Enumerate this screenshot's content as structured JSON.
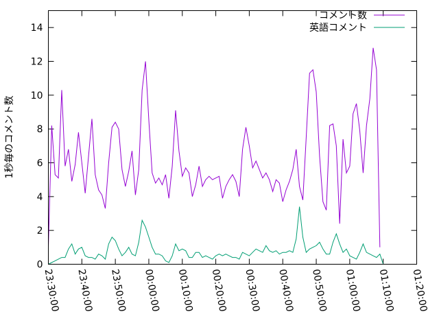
{
  "chart_data": {
    "type": "line",
    "ylabel": "1秒毎のコメント数",
    "xlabel": "",
    "ylim": [
      0,
      15
    ],
    "yticks": [
      0,
      2,
      4,
      6,
      8,
      10,
      12,
      14
    ],
    "xlim": [
      "23:30:00",
      "01:20:00"
    ],
    "xticks": [
      "23:30:00",
      "23:40:00",
      "23:50:00",
      "00:00:00",
      "00:10:00",
      "00:20:00",
      "00:30:00",
      "00:40:00",
      "00:50:00",
      "01:00:00",
      "01:10:00",
      "01:20:00"
    ],
    "grid": false,
    "legend_position": "top-right",
    "series": [
      {
        "name": "コメント数",
        "color": "#9400d3",
        "points": [
          [
            "23:30:00",
            1.0
          ],
          [
            "23:31:00",
            8.2
          ],
          [
            "23:32:00",
            5.3
          ],
          [
            "23:33:00",
            5.1
          ],
          [
            "23:34:00",
            10.3
          ],
          [
            "23:35:00",
            5.8
          ],
          [
            "23:36:00",
            6.8
          ],
          [
            "23:37:00",
            4.9
          ],
          [
            "23:38:00",
            5.9
          ],
          [
            "23:39:00",
            7.8
          ],
          [
            "23:40:00",
            6.0
          ],
          [
            "23:41:00",
            4.2
          ],
          [
            "23:42:00",
            6.4
          ],
          [
            "23:43:00",
            8.6
          ],
          [
            "23:44:00",
            5.3
          ],
          [
            "23:45:00",
            4.4
          ],
          [
            "23:46:00",
            4.1
          ],
          [
            "23:47:00",
            3.3
          ],
          [
            "23:48:00",
            6.0
          ],
          [
            "23:49:00",
            8.1
          ],
          [
            "23:50:00",
            8.4
          ],
          [
            "23:51:00",
            8.0
          ],
          [
            "23:52:00",
            5.6
          ],
          [
            "23:53:00",
            4.6
          ],
          [
            "23:54:00",
            5.5
          ],
          [
            "23:55:00",
            6.7
          ],
          [
            "23:56:00",
            4.1
          ],
          [
            "23:57:00",
            5.6
          ],
          [
            "23:58:00",
            10.3
          ],
          [
            "23:59:00",
            12.0
          ],
          [
            "00:00:00",
            8.5
          ],
          [
            "00:01:00",
            5.4
          ],
          [
            "00:02:00",
            4.8
          ],
          [
            "00:03:00",
            5.1
          ],
          [
            "00:04:00",
            4.7
          ],
          [
            "00:05:00",
            5.3
          ],
          [
            "00:06:00",
            3.9
          ],
          [
            "00:07:00",
            5.8
          ],
          [
            "00:08:00",
            9.1
          ],
          [
            "00:09:00",
            6.7
          ],
          [
            "00:10:00",
            5.2
          ],
          [
            "00:11:00",
            5.7
          ],
          [
            "00:12:00",
            5.4
          ],
          [
            "00:13:00",
            4.0
          ],
          [
            "00:14:00",
            4.7
          ],
          [
            "00:15:00",
            5.8
          ],
          [
            "00:16:00",
            4.6
          ],
          [
            "00:17:00",
            5.0
          ],
          [
            "00:18:00",
            5.2
          ],
          [
            "00:19:00",
            5.0
          ],
          [
            "00:20:00",
            5.1
          ],
          [
            "00:21:00",
            5.2
          ],
          [
            "00:22:00",
            3.9
          ],
          [
            "00:23:00",
            4.6
          ],
          [
            "00:24:00",
            5.0
          ],
          [
            "00:25:00",
            5.3
          ],
          [
            "00:26:00",
            4.9
          ],
          [
            "00:27:00",
            4.0
          ],
          [
            "00:28:00",
            6.8
          ],
          [
            "00:29:00",
            8.1
          ],
          [
            "00:30:00",
            7.0
          ],
          [
            "00:31:00",
            5.7
          ],
          [
            "00:32:00",
            6.1
          ],
          [
            "00:33:00",
            5.6
          ],
          [
            "00:34:00",
            5.1
          ],
          [
            "00:35:00",
            5.4
          ],
          [
            "00:36:00",
            5.0
          ],
          [
            "00:37:00",
            4.3
          ],
          [
            "00:38:00",
            5.0
          ],
          [
            "00:39:00",
            4.8
          ],
          [
            "00:40:00",
            3.7
          ],
          [
            "00:41:00",
            4.4
          ],
          [
            "00:42:00",
            4.9
          ],
          [
            "00:43:00",
            5.6
          ],
          [
            "00:44:00",
            6.8
          ],
          [
            "00:45:00",
            4.6
          ],
          [
            "00:46:00",
            3.8
          ],
          [
            "00:47:00",
            7.5
          ],
          [
            "00:48:00",
            11.3
          ],
          [
            "00:49:00",
            11.5
          ],
          [
            "00:50:00",
            10.2
          ],
          [
            "00:51:00",
            6.4
          ],
          [
            "00:52:00",
            3.7
          ],
          [
            "00:53:00",
            3.2
          ],
          [
            "00:54:00",
            8.2
          ],
          [
            "00:55:00",
            8.3
          ],
          [
            "00:56:00",
            7.0
          ],
          [
            "00:57:00",
            2.4
          ],
          [
            "00:58:00",
            7.4
          ],
          [
            "00:59:00",
            5.4
          ],
          [
            "01:00:00",
            5.8
          ],
          [
            "01:01:00",
            8.9
          ],
          [
            "01:02:00",
            9.5
          ],
          [
            "01:03:00",
            7.9
          ],
          [
            "01:04:00",
            5.4
          ],
          [
            "01:05:00",
            8.2
          ],
          [
            "01:06:00",
            9.8
          ],
          [
            "01:07:00",
            12.8
          ],
          [
            "01:08:00",
            11.5
          ],
          [
            "01:09:00",
            1.0
          ]
        ]
      },
      {
        "name": "英語コメント",
        "color": "#009e73",
        "points": [
          [
            "23:30:00",
            0.0
          ],
          [
            "23:31:00",
            0.1
          ],
          [
            "23:32:00",
            0.2
          ],
          [
            "23:33:00",
            0.3
          ],
          [
            "23:34:00",
            0.4
          ],
          [
            "23:35:00",
            0.4
          ],
          [
            "23:36:00",
            0.9
          ],
          [
            "23:37:00",
            1.2
          ],
          [
            "23:38:00",
            0.6
          ],
          [
            "23:39:00",
            0.9
          ],
          [
            "23:40:00",
            1.0
          ],
          [
            "23:41:00",
            0.5
          ],
          [
            "23:42:00",
            0.4
          ],
          [
            "23:43:00",
            0.4
          ],
          [
            "23:44:00",
            0.3
          ],
          [
            "23:45:00",
            0.6
          ],
          [
            "23:46:00",
            0.5
          ],
          [
            "23:47:00",
            0.3
          ],
          [
            "23:48:00",
            1.2
          ],
          [
            "23:49:00",
            1.6
          ],
          [
            "23:50:00",
            1.4
          ],
          [
            "23:51:00",
            0.9
          ],
          [
            "23:52:00",
            0.5
          ],
          [
            "23:53:00",
            0.7
          ],
          [
            "23:54:00",
            1.0
          ],
          [
            "23:55:00",
            0.6
          ],
          [
            "23:56:00",
            0.5
          ],
          [
            "23:57:00",
            1.3
          ],
          [
            "23:58:00",
            2.6
          ],
          [
            "23:59:00",
            2.2
          ],
          [
            "00:00:00",
            1.6
          ],
          [
            "00:01:00",
            1.0
          ],
          [
            "00:02:00",
            0.6
          ],
          [
            "00:03:00",
            0.6
          ],
          [
            "00:04:00",
            0.5
          ],
          [
            "00:05:00",
            0.2
          ],
          [
            "00:06:00",
            0.1
          ],
          [
            "00:07:00",
            0.5
          ],
          [
            "00:08:00",
            1.2
          ],
          [
            "00:09:00",
            0.8
          ],
          [
            "00:10:00",
            0.9
          ],
          [
            "00:11:00",
            0.8
          ],
          [
            "00:12:00",
            0.4
          ],
          [
            "00:13:00",
            0.4
          ],
          [
            "00:14:00",
            0.7
          ],
          [
            "00:15:00",
            0.7
          ],
          [
            "00:16:00",
            0.4
          ],
          [
            "00:17:00",
            0.5
          ],
          [
            "00:18:00",
            0.4
          ],
          [
            "00:19:00",
            0.3
          ],
          [
            "00:20:00",
            0.5
          ],
          [
            "00:21:00",
            0.6
          ],
          [
            "00:22:00",
            0.5
          ],
          [
            "00:23:00",
            0.6
          ],
          [
            "00:24:00",
            0.5
          ],
          [
            "00:25:00",
            0.4
          ],
          [
            "00:26:00",
            0.4
          ],
          [
            "00:27:00",
            0.3
          ],
          [
            "00:28:00",
            0.7
          ],
          [
            "00:29:00",
            0.6
          ],
          [
            "00:30:00",
            0.5
          ],
          [
            "00:31:00",
            0.7
          ],
          [
            "00:32:00",
            0.9
          ],
          [
            "00:33:00",
            0.8
          ],
          [
            "00:34:00",
            0.7
          ],
          [
            "00:35:00",
            1.1
          ],
          [
            "00:36:00",
            0.8
          ],
          [
            "00:37:00",
            0.7
          ],
          [
            "00:38:00",
            0.8
          ],
          [
            "00:39:00",
            0.6
          ],
          [
            "00:40:00",
            0.7
          ],
          [
            "00:41:00",
            0.7
          ],
          [
            "00:42:00",
            0.8
          ],
          [
            "00:43:00",
            0.7
          ],
          [
            "00:44:00",
            1.5
          ],
          [
            "00:45:00",
            3.4
          ],
          [
            "00:46:00",
            1.6
          ],
          [
            "00:47:00",
            0.7
          ],
          [
            "00:48:00",
            0.9
          ],
          [
            "00:49:00",
            1.0
          ],
          [
            "00:50:00",
            1.1
          ],
          [
            "00:51:00",
            1.3
          ],
          [
            "00:52:00",
            0.9
          ],
          [
            "00:53:00",
            0.6
          ],
          [
            "00:54:00",
            0.6
          ],
          [
            "00:55:00",
            1.3
          ],
          [
            "00:56:00",
            1.8
          ],
          [
            "00:57:00",
            1.2
          ],
          [
            "00:58:00",
            0.7
          ],
          [
            "00:59:00",
            0.9
          ],
          [
            "01:00:00",
            0.5
          ],
          [
            "01:01:00",
            0.4
          ],
          [
            "01:02:00",
            0.3
          ],
          [
            "01:03:00",
            0.7
          ],
          [
            "01:04:00",
            1.2
          ],
          [
            "01:05:00",
            0.7
          ],
          [
            "01:06:00",
            0.6
          ],
          [
            "01:07:00",
            0.5
          ],
          [
            "01:08:00",
            0.4
          ],
          [
            "01:09:00",
            0.6
          ],
          [
            "01:10:00",
            0.0
          ]
        ]
      }
    ]
  }
}
